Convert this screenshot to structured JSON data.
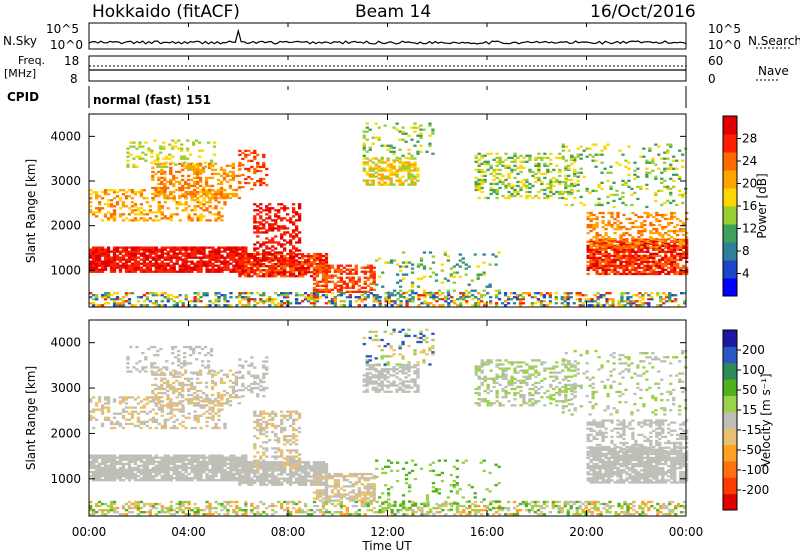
{
  "header": {
    "station": "Hokkaido (fitACF)",
    "beam": "Beam 14",
    "date": "16/Oct/2016"
  },
  "strips": {
    "nsky_label": "N.Sky",
    "nsky_ticks": [
      "10^5",
      "10^0"
    ],
    "nsearch_label": "N.Search",
    "nsearch_ticks": [
      "10^5",
      "10^0"
    ],
    "freq_label_line1": "Freq.",
    "freq_label_line2": "[MHz]",
    "freq_ticks": [
      "18",
      "8"
    ],
    "nave_label": "Nave",
    "nave_ticks": [
      "60",
      "0"
    ],
    "cpid_label": "CPID",
    "cpid_text": "normal (fast) 151"
  },
  "chart_data": [
    {
      "type": "heatmap",
      "title": "",
      "ylabel": "Slant Range [km]",
      "xlabel": "",
      "ylim": [
        180,
        4500
      ],
      "yticks": [
        "1000",
        "2000",
        "3000",
        "4000"
      ],
      "colorbar": {
        "label": "Power [dB]",
        "ticks": [
          "4",
          "8",
          "12",
          "16",
          "20",
          "24",
          "28"
        ],
        "colors": [
          "#0000ff",
          "#1c46c8",
          "#2f7f9a",
          "#3fa05a",
          "#9acd32",
          "#ffd700",
          "#ffa500",
          "#ff6a00",
          "#ff2000",
          "#e00000"
        ]
      }
    },
    {
      "type": "heatmap",
      "title": "",
      "ylabel": "Slant Range [km]",
      "xlabel": "Time UT",
      "ylim": [
        180,
        4500
      ],
      "yticks": [
        "1000",
        "2000",
        "3000",
        "4000"
      ],
      "colorbar": {
        "label": "Velocity [m s⁻¹]",
        "ticks": [
          "200",
          "100",
          "50",
          "15",
          "-15",
          "-50",
          "-100",
          "-200"
        ],
        "colors": [
          "#1a1aa0",
          "#2a58c0",
          "#2f8a5a",
          "#4fb020",
          "#9ad24a",
          "#bfbfb8",
          "#e8c070",
          "#ffa020",
          "#ff7010",
          "#ff3a00",
          "#e00000"
        ]
      }
    }
  ],
  "x_axis": {
    "ticks": [
      "00:00",
      "04:00",
      "08:00",
      "12:00",
      "16:00",
      "20:00",
      "00:00"
    ],
    "label": "Time UT"
  }
}
